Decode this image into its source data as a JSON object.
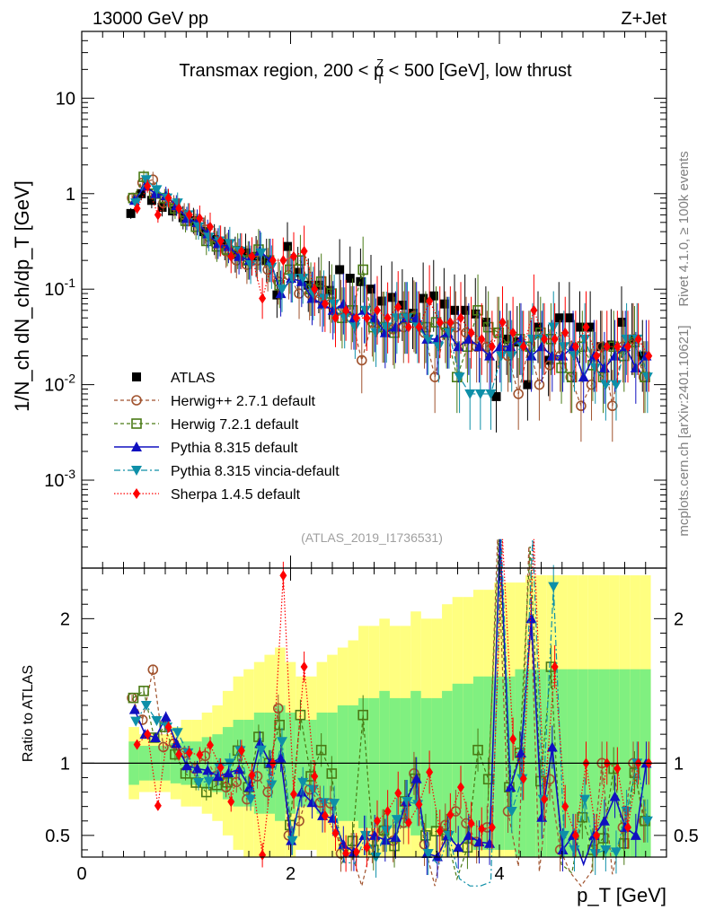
{
  "header": {
    "left": "13000 GeV pp",
    "right": "Z+Jet"
  },
  "side_labels": {
    "rivet": "Rivet 4.1.0, ≥ 100k events",
    "mcplots": "mcplots.cern.ch [arXiv:2401.10621]"
  },
  "chart_data": {
    "type": "scatter",
    "title_parts": {
      "pre": "Transmax region, 200 < p",
      "sup": "Z",
      "sub": "T",
      "post": " < 500 [GeV], low thrust"
    },
    "watermark": "(ATLAS_2019_I1736531)",
    "ylabel": "1/N_ch dN_ch/dp_T [GeV]",
    "ratio_ylabel": "Ratio to ATLAS",
    "xlabel": "p_T [GeV]",
    "xlim": [
      0,
      5.6
    ],
    "ylim": [
      0.00012,
      50
    ],
    "ratio_ylim": [
      0.35,
      2.35
    ],
    "x_ticks": [
      "0",
      "2",
      "4"
    ],
    "y_ticks": [
      "10",
      "1",
      "10^-1",
      "10^-2",
      "10^-3"
    ],
    "ratio_ticks": [
      "2",
      "1",
      "0.5"
    ],
    "legend": [
      {
        "name": "ATLAS"
      },
      {
        "name": "Herwig++ 2.7.1 default"
      },
      {
        "name": "Herwig 7.2.1 default"
      },
      {
        "name": "Pythia 8.315 default"
      },
      {
        "name": "Pythia 8.315 vincia-default"
      },
      {
        "name": "Sherpa 1.4.5 default"
      }
    ],
    "x": [
      0.5,
      0.6,
      0.7,
      0.8,
      0.9,
      1.0,
      1.1,
      1.2,
      1.3,
      1.4,
      1.5,
      1.6,
      1.7,
      1.8,
      1.9,
      2.0,
      2.1,
      2.2,
      2.3,
      2.4,
      2.5,
      2.6,
      2.7,
      2.8,
      2.9,
      3.0,
      3.1,
      3.2,
      3.3,
      3.4,
      3.5,
      3.6,
      3.7,
      3.8,
      3.9,
      4.0,
      4.1,
      4.2,
      4.3,
      4.4,
      4.5,
      4.6,
      4.7,
      4.8,
      4.9,
      5.0,
      5.1,
      5.2,
      5.3,
      5.4
    ],
    "series": [
      {
        "name": "ATLAS",
        "color": "#000000",
        "marker": "square-filled",
        "values": [
          0.62,
          1.0,
          0.85,
          0.72,
          0.66,
          0.56,
          0.52,
          0.4,
          0.33,
          0.3,
          0.23,
          0.24,
          0.22,
          0.2,
          0.087,
          0.28,
          0.15,
          0.11,
          0.11,
          0.097,
          0.16,
          0.13,
          0.12,
          0.1,
          0.075,
          0.082,
          0.068,
          0.056,
          0.08,
          0.085,
          0.07,
          0.06,
          0.06,
          0.055,
          0.045,
          0.0075,
          0.03,
          0.028,
          0.01,
          0.04,
          0.018,
          0.05,
          0.05,
          0.04,
          0.04,
          0.025,
          0.026,
          0.045,
          0.03,
          0.02
        ]
      },
      {
        "name": "Herwig++ 2.7.1 default",
        "color": "#a0522d",
        "marker": "circle-open",
        "values": [
          0.9,
          1.3,
          1.4,
          0.8,
          0.75,
          0.6,
          0.5,
          0.42,
          0.3,
          0.25,
          0.2,
          0.18,
          0.2,
          0.16,
          0.12,
          0.14,
          0.09,
          0.09,
          0.08,
          0.07,
          0.06,
          0.05,
          0.018,
          0.045,
          0.04,
          0.038,
          0.04,
          0.052,
          0.035,
          0.012,
          0.04,
          0.04,
          0.035,
          0.025,
          0.025,
          0.035,
          0.02,
          0.008,
          0.025,
          0.01,
          0.016,
          0.02,
          0.012,
          0.006,
          0.01,
          0.025,
          0.006,
          0.025,
          0.03,
          0.012
        ]
      },
      {
        "name": "Herwig 7.2.1 default",
        "color": "#4a7a15",
        "marker": "square-open",
        "values": [
          0.9,
          1.5,
          1.0,
          0.9,
          0.7,
          0.52,
          0.45,
          0.32,
          0.28,
          0.26,
          0.25,
          0.2,
          0.26,
          0.2,
          0.11,
          0.16,
          0.2,
          0.1,
          0.12,
          0.09,
          0.05,
          0.06,
          0.16,
          0.04,
          0.04,
          0.035,
          0.05,
          0.05,
          0.04,
          0.045,
          0.035,
          0.012,
          0.025,
          0.06,
          0.04,
          0.035,
          0.025,
          0.03,
          0.025,
          0.035,
          0.03,
          0.015,
          0.012,
          0.025,
          0.016,
          0.012,
          0.025,
          0.02,
          0.028,
          0.012
        ]
      },
      {
        "name": "Pythia 8.315 default",
        "color": "#1010c0",
        "marker": "triangle-up",
        "values": [
          0.85,
          1.2,
          1.0,
          0.95,
          0.75,
          0.55,
          0.5,
          0.38,
          0.3,
          0.28,
          0.22,
          0.2,
          0.25,
          0.2,
          0.09,
          0.13,
          0.12,
          0.08,
          0.07,
          0.06,
          0.07,
          0.05,
          0.06,
          0.05,
          0.035,
          0.04,
          0.05,
          0.05,
          0.03,
          0.03,
          0.035,
          0.025,
          0.03,
          0.025,
          0.02,
          0.025,
          0.025,
          0.03,
          0.02,
          0.025,
          0.02,
          0.02,
          0.025,
          0.012,
          0.02,
          0.015,
          0.02,
          0.025,
          0.015,
          0.02
        ]
      },
      {
        "name": "Pythia 8.315 vincia-default",
        "color": "#0e8fa8",
        "marker": "triangle-down",
        "values": [
          0.8,
          1.4,
          1.1,
          0.9,
          0.8,
          0.6,
          0.45,
          0.35,
          0.32,
          0.3,
          0.25,
          0.18,
          0.24,
          0.17,
          0.1,
          0.13,
          0.13,
          0.09,
          0.08,
          0.07,
          0.05,
          0.04,
          0.06,
          0.035,
          0.04,
          0.05,
          0.05,
          0.04,
          0.03,
          0.025,
          0.035,
          0.012,
          0.008,
          0.008,
          0.008,
          0.02,
          0.02,
          0.025,
          0.03,
          0.03,
          0.04,
          0.025,
          0.02,
          0.03,
          0.015,
          0.01,
          0.01,
          0.03,
          0.03,
          0.012
        ]
      },
      {
        "name": "Sherpa 1.4.5 default",
        "color": "#ff0000",
        "marker": "diamond",
        "values": [
          0.7,
          1.2,
          0.6,
          0.9,
          0.7,
          0.6,
          0.55,
          0.45,
          0.32,
          0.22,
          0.25,
          0.22,
          0.08,
          0.2,
          0.2,
          0.22,
          0.25,
          0.1,
          0.07,
          0.05,
          0.06,
          0.05,
          0.05,
          0.06,
          0.05,
          0.065,
          0.04,
          0.04,
          0.075,
          0.045,
          0.045,
          0.05,
          0.035,
          0.03,
          0.025,
          0.045,
          0.035,
          0.025,
          0.06,
          0.03,
          0.03,
          0.035,
          0.025,
          0.04,
          0.02,
          0.025,
          0.025,
          0.025,
          0.03,
          0.02
        ]
      }
    ],
    "ratio_band": {
      "inner": [
        0.15,
        0.12,
        0.12,
        0.12,
        0.14,
        0.15,
        0.15,
        0.18,
        0.2,
        0.25,
        0.3,
        0.3,
        0.35,
        0.35,
        0.4,
        0.35,
        0.3,
        0.3,
        0.35,
        0.35,
        0.4,
        0.4,
        0.45,
        0.45,
        0.5,
        0.45,
        0.45,
        0.5,
        0.45,
        0.45,
        0.5,
        0.55,
        0.55,
        0.6,
        0.6,
        0.6,
        0.6,
        0.65,
        0.65,
        0.65,
        0.65,
        0.65,
        0.65,
        0.65,
        0.65,
        0.65,
        0.65,
        0.65,
        0.65,
        0.65
      ],
      "outer": [
        0.25,
        0.2,
        0.2,
        0.2,
        0.25,
        0.3,
        0.3,
        0.35,
        0.4,
        0.5,
        0.6,
        0.65,
        0.7,
        0.75,
        0.8,
        0.7,
        0.6,
        0.6,
        0.7,
        0.75,
        0.8,
        0.85,
        0.95,
        0.95,
        1.0,
        0.95,
        0.95,
        1.05,
        1.0,
        1.0,
        1.1,
        1.15,
        1.15,
        1.2,
        1.2,
        1.25,
        1.25,
        1.25,
        1.3,
        1.3,
        1.3,
        1.3,
        1.3,
        1.3,
        1.3,
        1.3,
        1.3,
        1.3,
        1.3,
        1.3
      ]
    }
  }
}
